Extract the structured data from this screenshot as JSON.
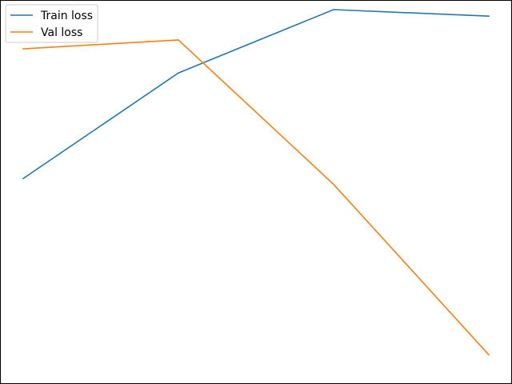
{
  "chart_data": {
    "type": "line",
    "x": [
      0,
      1,
      2,
      3
    ],
    "ylim": [
      0,
      1
    ],
    "grid": false,
    "legend": "upper left",
    "series": [
      {
        "name": "Train loss",
        "color": "#1f77b4",
        "values": [
          0.535,
          0.81,
          0.975,
          0.958
        ]
      },
      {
        "name": "Val loss",
        "color": "#ff7f0e",
        "values": [
          0.873,
          0.896,
          0.52,
          0.076
        ]
      }
    ]
  }
}
